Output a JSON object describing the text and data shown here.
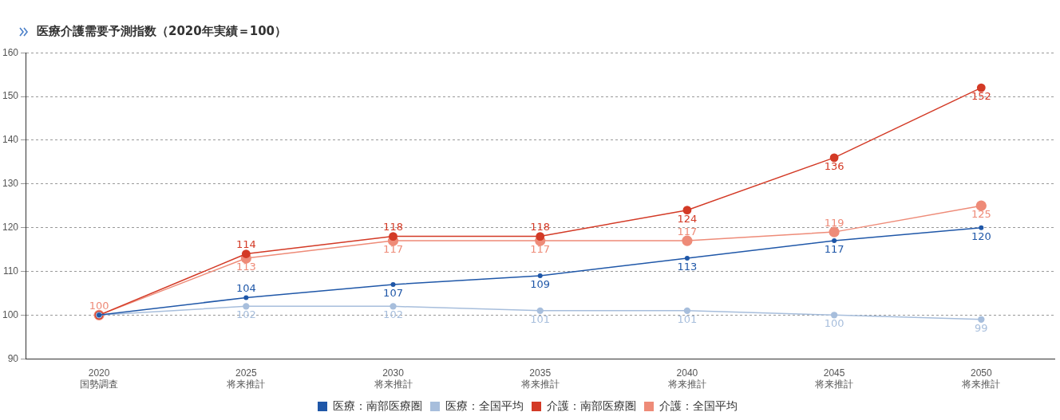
{
  "chart_data": {
    "type": "line",
    "title": "医療介護需要予測指数（2020年実績＝100）",
    "categories": [
      "2020\n国勢調査",
      "2025\n将来推計",
      "2030\n将来推計",
      "2035\n将来推計",
      "2040\n将来推計",
      "2045\n将来推計",
      "2050\n将来推計"
    ],
    "series": [
      {
        "name": "医療：南部医療圏",
        "color": "#1f57a8",
        "values": [
          100,
          104,
          107,
          109,
          113,
          117,
          120
        ],
        "value_labels": [
          null,
          "104",
          "107",
          "109",
          "113",
          "117",
          "120"
        ]
      },
      {
        "name": "医療：全国平均",
        "color": "#a7bedc",
        "values": [
          100,
          102,
          102,
          101,
          101,
          100,
          99
        ],
        "value_labels": [
          null,
          "102",
          "102",
          "101",
          "101",
          "100",
          "99"
        ]
      },
      {
        "name": "介護：南部医療圏",
        "color": "#d33a26",
        "values": [
          100,
          114,
          118,
          118,
          124,
          136,
          152
        ],
        "value_labels": [
          null,
          "114",
          "118",
          "118",
          "124",
          "136",
          "152"
        ]
      },
      {
        "name": "介護：全国平均",
        "color": "#ee8b78",
        "values": [
          100,
          113,
          117,
          117,
          117,
          119,
          125
        ],
        "value_labels": [
          "100",
          "113",
          "117",
          "117",
          "117",
          "119",
          "125"
        ]
      }
    ],
    "ylim": [
      90,
      160
    ],
    "yticks": [
      90,
      100,
      110,
      120,
      130,
      140,
      150,
      160
    ],
    "grid": "y",
    "legend": "bottom",
    "marker": "circle",
    "line_style": "solid"
  }
}
